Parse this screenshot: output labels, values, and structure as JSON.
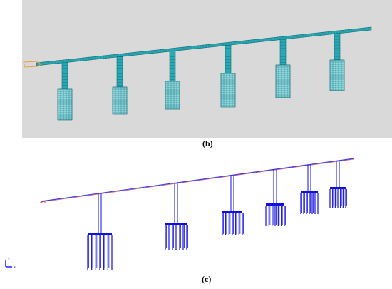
{
  "captions": {
    "b": "(b)",
    "c": "(c)"
  },
  "axis_triad": {
    "x_label": "x",
    "z_label": "z"
  },
  "colors": {
    "viewport_bg": "#d9d9d9",
    "mesh": "#2aa8b3",
    "mesh_dark": "#0f6f7a",
    "abutment": "#e8a040",
    "line_model": "#1010e0",
    "deck_line": "#3a3af0",
    "deck_red": "#d03030",
    "triad": "#2020ff"
  },
  "model": {
    "pier_count": 6
  }
}
